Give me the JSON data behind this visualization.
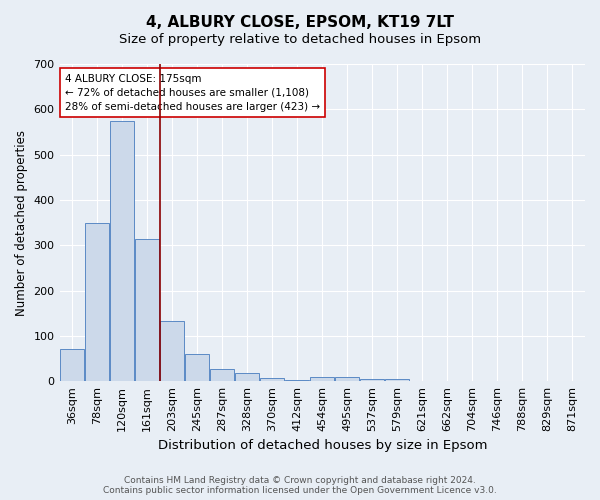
{
  "title": "4, ALBURY CLOSE, EPSOM, KT19 7LT",
  "subtitle": "Size of property relative to detached houses in Epsom",
  "xlabel": "Distribution of detached houses by size in Epsom",
  "ylabel": "Number of detached properties",
  "bar_labels": [
    "36sqm",
    "78sqm",
    "120sqm",
    "161sqm",
    "203sqm",
    "245sqm",
    "287sqm",
    "328sqm",
    "370sqm",
    "412sqm",
    "454sqm",
    "495sqm",
    "537sqm",
    "579sqm",
    "621sqm",
    "662sqm",
    "704sqm",
    "746sqm",
    "788sqm",
    "829sqm",
    "871sqm"
  ],
  "bar_values": [
    70,
    350,
    575,
    313,
    132,
    60,
    27,
    17,
    7,
    2,
    10,
    10,
    4,
    4,
    0,
    0,
    0,
    0,
    0,
    0,
    0
  ],
  "bar_color": "#ccd9ea",
  "bar_edgecolor": "#5b8ac5",
  "background_color": "#e8eef5",
  "plot_bg_color": "#e8eef5",
  "vline_x": 3.5,
  "vline_color": "#8b0000",
  "annotation_line1": "4 ALBURY CLOSE: 175sqm",
  "annotation_line2": "← 72% of detached houses are smaller (1,108)",
  "annotation_line3": "28% of semi-detached houses are larger (423) →",
  "annotation_box_color": "#ffffff",
  "annotation_box_edgecolor": "#cc0000",
  "ylim": [
    0,
    700
  ],
  "yticks": [
    0,
    100,
    200,
    300,
    400,
    500,
    600,
    700
  ],
  "footer_text": "Contains HM Land Registry data © Crown copyright and database right 2024.\nContains public sector information licensed under the Open Government Licence v3.0.",
  "title_fontsize": 11,
  "subtitle_fontsize": 9.5,
  "xlabel_fontsize": 9.5,
  "ylabel_fontsize": 8.5,
  "tick_fontsize": 8,
  "annotation_fontsize": 7.5,
  "footer_fontsize": 6.5
}
